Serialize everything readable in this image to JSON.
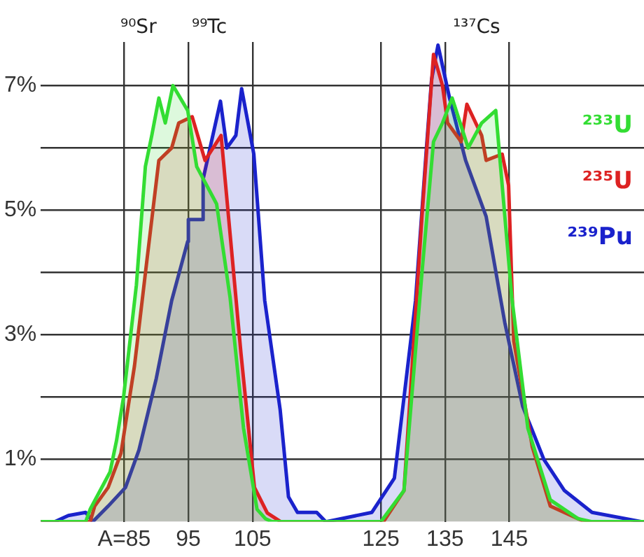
{
  "chart_data": {
    "type": "area",
    "xlim": [
      72,
      166
    ],
    "ylim": [
      0,
      7.7
    ],
    "xticks": [
      {
        "value": 85,
        "label": "A=85"
      },
      95,
      105,
      125,
      135,
      145
    ],
    "yticks": [
      {
        "value": 1,
        "label": "1%"
      },
      {
        "value": 2,
        "label": null
      },
      {
        "value": 3,
        "label": "3%"
      },
      {
        "value": 4,
        "label": null
      },
      {
        "value": 5,
        "label": "5%"
      },
      {
        "value": 6,
        "label": null
      },
      {
        "value": 7,
        "label": "7%"
      }
    ],
    "grid": true,
    "legend": "top right",
    "annotations": [
      "⁹⁰Sr",
      "⁹⁹Tc",
      "¹³⁷Cs"
    ],
    "series": [
      {
        "name": "²³³U",
        "color": "#33dd33",
        "x": [
          72,
          79,
          79.7,
          82.8,
          83.8,
          84.9,
          86.9,
          88.3,
          89.3,
          90.4,
          91.4,
          92.6,
          94.9,
          96.3,
          99.4,
          101.5,
          103.6,
          105.7,
          107,
          108,
          125,
          128.6,
          131.4,
          133.2,
          134.6,
          136.1,
          138.6,
          140.7,
          142.9,
          145.4,
          147.9,
          151.4,
          155.7,
          157.9,
          166
        ],
        "values": [
          0,
          0,
          0.2,
          0.8,
          1.3,
          2.0,
          3.8,
          5.7,
          6.2,
          6.8,
          6.4,
          7.0,
          6.6,
          5.7,
          5.1,
          3.6,
          1.5,
          0.2,
          0.05,
          0,
          0,
          0.5,
          4.0,
          6.1,
          6.4,
          6.8,
          6.0,
          6.4,
          6.6,
          3.6,
          1.5,
          0.35,
          0.05,
          0,
          0
        ]
      },
      {
        "name": "²³⁵U",
        "color": "#dd2222",
        "x": [
          72,
          79.7,
          80.4,
          82.5,
          84.5,
          86.6,
          88.6,
          90.4,
          92.4,
          93.5,
          95.6,
          97.6,
          100.1,
          103.2,
          105.3,
          107.3,
          109.4,
          125.4,
          128.6,
          131.4,
          133.2,
          134.6,
          135.4,
          137.5,
          138.4,
          140.7,
          141.4,
          143.9,
          144.9,
          145.7,
          148.6,
          151.4,
          155.7,
          156.8,
          166
        ],
        "values": [
          0,
          0,
          0.25,
          0.55,
          1.1,
          2.5,
          4.25,
          5.8,
          6.0,
          6.4,
          6.5,
          5.8,
          6.2,
          2.7,
          0.55,
          0.14,
          0,
          0,
          0.5,
          4.9,
          7.5,
          7.0,
          6.4,
          6.1,
          6.7,
          6.2,
          5.8,
          5.9,
          5.4,
          2.9,
          1.2,
          0.25,
          0.05,
          0,
          0
        ]
      },
      {
        "name": "²³⁹Pu",
        "color": "#1a22cc",
        "x": [
          72,
          74.2,
          76.3,
          79,
          80.1,
          82.5,
          85.2,
          87.3,
          90,
          92.4,
          94.9,
          95,
          97.3,
          97.3,
          100,
          101,
          102.4,
          103.3,
          105.2,
          106.9,
          109.3,
          110.6,
          112,
          115,
          116.4,
          117.9,
          123.6,
          127.1,
          130.4,
          132.1,
          132.9,
          133.9,
          135.7,
          138.2,
          141.4,
          144.3,
          147.1,
          150.4,
          153.6,
          157.9,
          165.7,
          166
        ],
        "values": [
          0,
          0,
          0.1,
          0.15,
          0,
          0.25,
          0.55,
          1.15,
          2.3,
          3.55,
          4.5,
          4.85,
          4.85,
          5.5,
          6.75,
          6.0,
          6.2,
          6.95,
          5.9,
          3.55,
          1.8,
          0.4,
          0.15,
          0.15,
          0,
          0.03,
          0.15,
          0.7,
          3.55,
          6.0,
          7.1,
          7.65,
          6.8,
          5.8,
          4.9,
          3.2,
          1.85,
          1.0,
          0.5,
          0.15,
          0,
          0
        ]
      }
    ]
  }
}
